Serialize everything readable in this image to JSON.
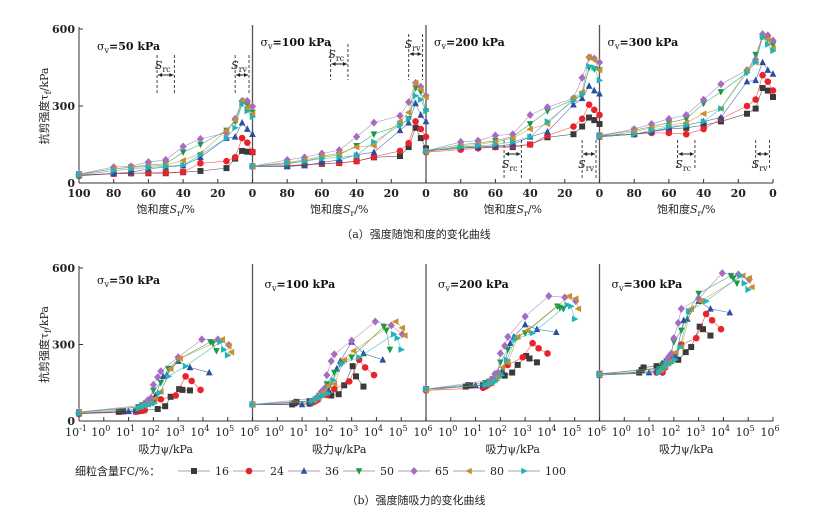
{
  "figure": {
    "caption_a": "（a）强度随饱和度的变化曲线",
    "caption_b": "（b）强度随吸力的变化曲线",
    "legend_label": "细粒含量FC/%：",
    "y_label": "抗剪强度τf/kPa",
    "x_label_a": "饱和度Sr/%",
    "x_label_b": "吸力ψ/kPa",
    "annot_src": "Src",
    "annot_srv": "Srv"
  },
  "chart_data": [
    {
      "type": "line",
      "name_part": "a",
      "panels": [
        "σv=50 kPa",
        "σv=100 kPa",
        "σv=200 kPa",
        "σv=300 kPa"
      ],
      "xlabel": "饱和度Sr/%",
      "ylabel": "抗剪强度τf/kPa",
      "xlim": [
        100,
        0
      ],
      "ylim": [
        0,
        600
      ],
      "x_ticks": [
        100,
        80,
        60,
        40,
        20,
        0
      ],
      "y_ticks": [
        0,
        300,
        600
      ],
      "x": [
        100,
        80,
        70,
        60,
        50,
        40,
        30,
        15,
        10,
        6,
        3,
        0
      ],
      "series": [
        {
          "name": "16",
          "color": "#3a3a3a",
          "marker": "square",
          "values": [
            [
              30,
              36,
              38,
              38,
              38,
              42,
              47,
              58,
              95,
              125,
              122,
              120
            ],
            [
              65,
              65,
              70,
              75,
              78,
              85,
              100,
              105,
              140,
              215,
              175,
              135
            ],
            [
              125,
              135,
              140,
              140,
              140,
              150,
              178,
              190,
              220,
              255,
              245,
              230
            ],
            [
              185,
              190,
              200,
              210,
              215,
              225,
              240,
              270,
              290,
              370,
              360,
              335
            ]
          ]
        },
        {
          "name": "24",
          "color": "#e8232a",
          "marker": "circle",
          "values": [
            [
              28,
              36,
              38,
              40,
              40,
              43,
              77,
              85,
              100,
              175,
              157,
              122
            ],
            [
              65,
              68,
              72,
              75,
              78,
              85,
              102,
              125,
              155,
              240,
              210,
              180
            ],
            [
              120,
              130,
              135,
              140,
              145,
              150,
              185,
              220,
              250,
              305,
              285,
              265
            ],
            [
              180,
              190,
              195,
              195,
              190,
              210,
              250,
              300,
              325,
              420,
              395,
              360
            ]
          ]
        },
        {
          "name": "36",
          "color": "#2b4fa0",
          "marker": "triangle-up",
          "values": [
            [
              30,
              38,
              42,
              55,
              62,
              68,
              100,
              175,
              180,
              235,
              210,
              190
            ],
            [
              65,
              65,
              68,
              80,
              90,
              110,
              120,
              205,
              235,
              310,
              265,
              240
            ],
            [
              125,
              140,
              140,
              145,
              150,
              180,
              200,
              305,
              330,
              378,
              360,
              348
            ],
            [
              180,
              190,
              200,
              215,
              225,
              240,
              255,
              395,
              400,
              470,
              440,
              425
            ]
          ]
        },
        {
          "name": "50",
          "color": "#1a9a45",
          "marker": "triangle-down",
          "values": [
            [
              35,
              55,
              62,
              70,
              75,
              120,
              150,
              205,
              240,
              310,
              305,
              275
            ],
            [
              65,
              75,
              85,
              100,
              110,
              145,
              190,
              225,
              250,
              370,
              355,
              280
            ],
            [
              125,
              150,
              155,
              165,
              180,
              230,
              280,
              325,
              345,
              450,
              445,
              440
            ],
            [
              185,
              205,
              220,
              235,
              250,
              310,
              355,
              430,
              500,
              570,
              560,
              540
            ]
          ]
        },
        {
          "name": "65",
          "color": "#a56cc1",
          "marker": "diamond",
          "values": [
            [
              35,
              62,
              65,
              82,
              90,
              142,
              172,
              195,
              250,
              320,
              320,
              298
            ],
            [
              65,
              90,
              100,
              115,
              128,
              180,
              235,
              262,
              315,
              390,
              375,
              340
            ],
            [
              125,
              160,
              165,
              185,
              190,
              265,
              295,
              330,
              410,
              490,
              485,
              470
            ],
            [
              185,
              210,
              230,
              250,
              265,
              325,
              385,
              440,
              480,
              580,
              575,
              555
            ]
          ]
        },
        {
          "name": "80",
          "color": "#c98f2a",
          "marker": "triangle-left",
          "values": [
            [
              32,
              55,
              60,
              65,
              70,
              88,
              115,
              205,
              245,
              320,
              295,
              270
            ],
            [
              65,
              80,
              90,
              105,
              115,
              140,
              145,
              240,
              275,
              390,
              365,
              335
            ],
            [
              120,
              145,
              150,
              160,
              175,
              210,
              230,
              330,
              355,
              490,
              480,
              440
            ],
            [
              180,
              200,
              215,
              225,
              235,
              270,
              290,
              440,
              470,
              570,
              560,
              525
            ]
          ]
        },
        {
          "name": "100",
          "color": "#21b3b8",
          "marker": "triangle-right",
          "values": [
            [
              30,
              48,
              55,
              60,
              65,
              70,
              110,
              175,
              215,
              310,
              280,
              258
            ],
            [
              65,
              78,
              85,
              95,
              100,
              108,
              160,
              225,
              250,
              340,
              325,
              280
            ],
            [
              125,
              140,
              145,
              150,
              160,
              180,
              240,
              320,
              345,
              455,
              450,
              400
            ],
            [
              180,
              190,
              205,
              220,
              225,
              240,
              290,
              430,
              470,
              570,
              540,
              515
            ]
          ]
        }
      ],
      "annotations": {
        "src_range": [
          55,
          45
        ],
        "srv_range": [
          10,
          2
        ]
      }
    },
    {
      "type": "scatter",
      "name_part": "b",
      "panels": [
        "σv=50 kPa",
        "σv=100 kPa",
        "σv=200 kPa",
        "σv=300 kPa"
      ],
      "xlabel": "吸力ψ/kPa",
      "ylabel": "抗剪强度τf/kPa",
      "x_scale": "log",
      "xlim": [
        0.1,
        1000000
      ],
      "ylim": [
        0,
        600
      ],
      "x_tick_base": "10",
      "x_tick_exponents": [
        -1,
        0,
        1,
        2,
        3,
        4,
        5,
        6
      ],
      "y_ticks": [
        0,
        300,
        600
      ],
      "suction": {
        "16": [
          0.1,
          4,
          5,
          6,
          20,
          40,
          150,
          300,
          500,
          1100,
          1500,
          3000
        ],
        "24": [
          0.1,
          20,
          25,
          30,
          35,
          45,
          100,
          200,
          800,
          2000,
          3500,
          8000
        ],
        "36": [
          0.1,
          10,
          20,
          30,
          35,
          60,
          120,
          250,
          350,
          1000,
          3000,
          18000
        ],
        "50": [
          0.1,
          25,
          35,
          50,
          70,
          100,
          200,
          400,
          1000,
          20000,
          25000,
          35000
        ],
        "65": [
          0.1,
          40,
          50,
          60,
          80,
          100,
          150,
          200,
          1000,
          9000,
          40000,
          110000
        ],
        "80": [
          0.1,
          30,
          45,
          60,
          80,
          120,
          200,
          500,
          1200,
          60000,
          110000,
          140000
        ],
        "100": [
          0.1,
          25,
          35,
          50,
          70,
          110,
          180,
          400,
          2000,
          50000,
          70000,
          100000
        ]
      },
      "values_note_same_as": "a"
    }
  ]
}
